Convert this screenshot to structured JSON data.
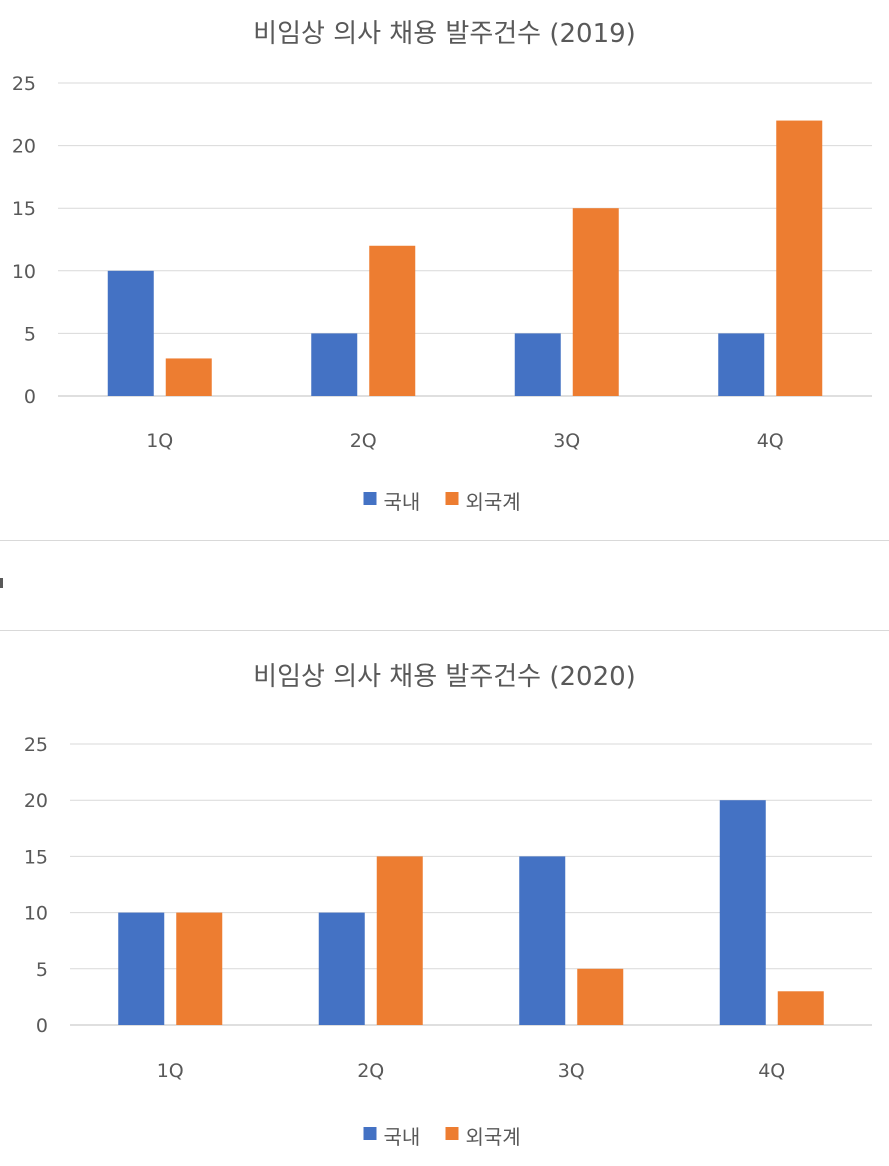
{
  "chart_data": [
    {
      "type": "bar",
      "title": "비임상 의사 채용 발주건수 (2019)",
      "categories": [
        "1Q",
        "2Q",
        "3Q",
        "4Q"
      ],
      "series": [
        {
          "name": "국내",
          "color": "#4472C4",
          "values": [
            10,
            5,
            5,
            5
          ]
        },
        {
          "name": "외국계",
          "color": "#ED7D31",
          "values": [
            3,
            12,
            15,
            22
          ]
        }
      ],
      "ylim": [
        0,
        25
      ],
      "yticks": [
        0,
        5,
        10,
        15,
        20,
        25
      ],
      "grid": true,
      "legend": "bottom"
    },
    {
      "type": "bar",
      "title": "비임상 의사 채용 발주건수 (2020)",
      "categories": [
        "1Q",
        "2Q",
        "3Q",
        "4Q"
      ],
      "series": [
        {
          "name": "국내",
          "color": "#4472C4",
          "values": [
            10,
            10,
            15,
            20
          ]
        },
        {
          "name": "외국계",
          "color": "#ED7D31",
          "values": [
            10,
            15,
            5,
            3
          ]
        }
      ],
      "ylim": [
        0,
        25
      ],
      "yticks": [
        0,
        5,
        10,
        15,
        20,
        25
      ],
      "grid": true,
      "legend": "bottom"
    }
  ]
}
